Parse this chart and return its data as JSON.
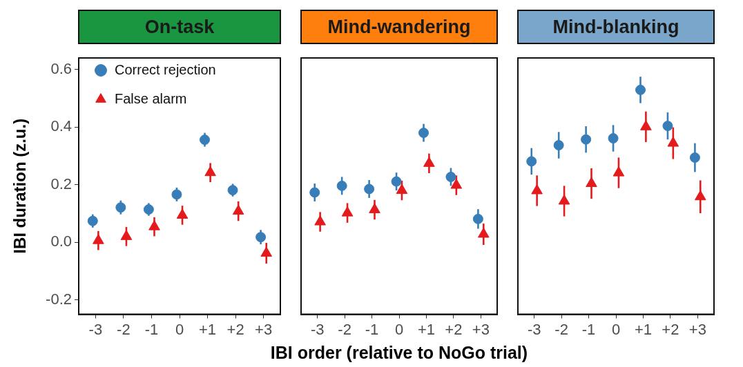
{
  "chart_data": [
    {
      "type": "scatter",
      "title": "On-task",
      "ylabel": "IBI duration (z.u.)",
      "categories": [
        "-3",
        "-2",
        "-1",
        "0",
        "+1",
        "+2",
        "+3"
      ],
      "ylim": [
        -0.25,
        0.64
      ],
      "yticks": [
        -0.2,
        {
          "value": 0,
          "label": "0.0"
        },
        0.2,
        0.4,
        0.6
      ],
      "legend": "top left",
      "series": [
        {
          "name": "Correct rejection",
          "color": "#377eb8",
          "marker": "circle",
          "values": [
            0.074,
            0.121,
            0.114,
            0.166,
            0.356,
            0.181,
            0.018
          ],
          "errors": [
            0.023,
            0.024,
            0.022,
            0.024,
            0.024,
            0.022,
            0.025
          ]
        },
        {
          "name": "False alarm",
          "color": "#e41a1c",
          "marker": "triangle",
          "values": [
            0.006,
            0.02,
            0.054,
            0.094,
            0.242,
            0.108,
            -0.038
          ],
          "errors": [
            0.033,
            0.033,
            0.033,
            0.033,
            0.033,
            0.034,
            0.036
          ]
        }
      ]
    },
    {
      "type": "scatter",
      "title": "Mind-wandering",
      "xlabel": "IBI order (relative to NoGo trial)",
      "categories": [
        "-3",
        "-2",
        "-1",
        "0",
        "+1",
        "+2",
        "+3"
      ],
      "ylim": [
        -0.25,
        0.64
      ],
      "tick_labels": "x",
      "series": [
        {
          "color": "#377eb8",
          "marker": "circle",
          "values": [
            0.173,
            0.196,
            0.185,
            0.211,
            0.38,
            0.227,
            0.081
          ],
          "errors": [
            0.031,
            0.031,
            0.031,
            0.031,
            0.031,
            0.031,
            0.034
          ]
        },
        {
          "color": "#e41a1c",
          "marker": "triangle",
          "values": [
            0.071,
            0.102,
            0.113,
            0.18,
            0.274,
            0.198,
            0.028
          ],
          "errors": [
            0.034,
            0.034,
            0.034,
            0.034,
            0.034,
            0.034,
            0.037
          ]
        }
      ]
    },
    {
      "type": "scatter",
      "title": "Mind-blanking",
      "categories": [
        "-3",
        "-2",
        "-1",
        "0",
        "+1",
        "+2",
        "+3"
      ],
      "ylim": [
        -0.25,
        0.64
      ],
      "tick_labels": "x",
      "series": [
        {
          "color": "#377eb8",
          "marker": "circle",
          "values": [
            0.281,
            0.337,
            0.357,
            0.361,
            0.529,
            0.404,
            0.294
          ],
          "errors": [
            0.046,
            0.046,
            0.046,
            0.046,
            0.046,
            0.047,
            0.05
          ]
        },
        {
          "color": "#e41a1c",
          "marker": "triangle",
          "values": [
            0.179,
            0.143,
            0.204,
            0.241,
            0.401,
            0.344,
            0.158
          ],
          "errors": [
            0.053,
            0.053,
            0.053,
            0.053,
            0.053,
            0.055,
            0.057
          ]
        }
      ]
    }
  ]
}
